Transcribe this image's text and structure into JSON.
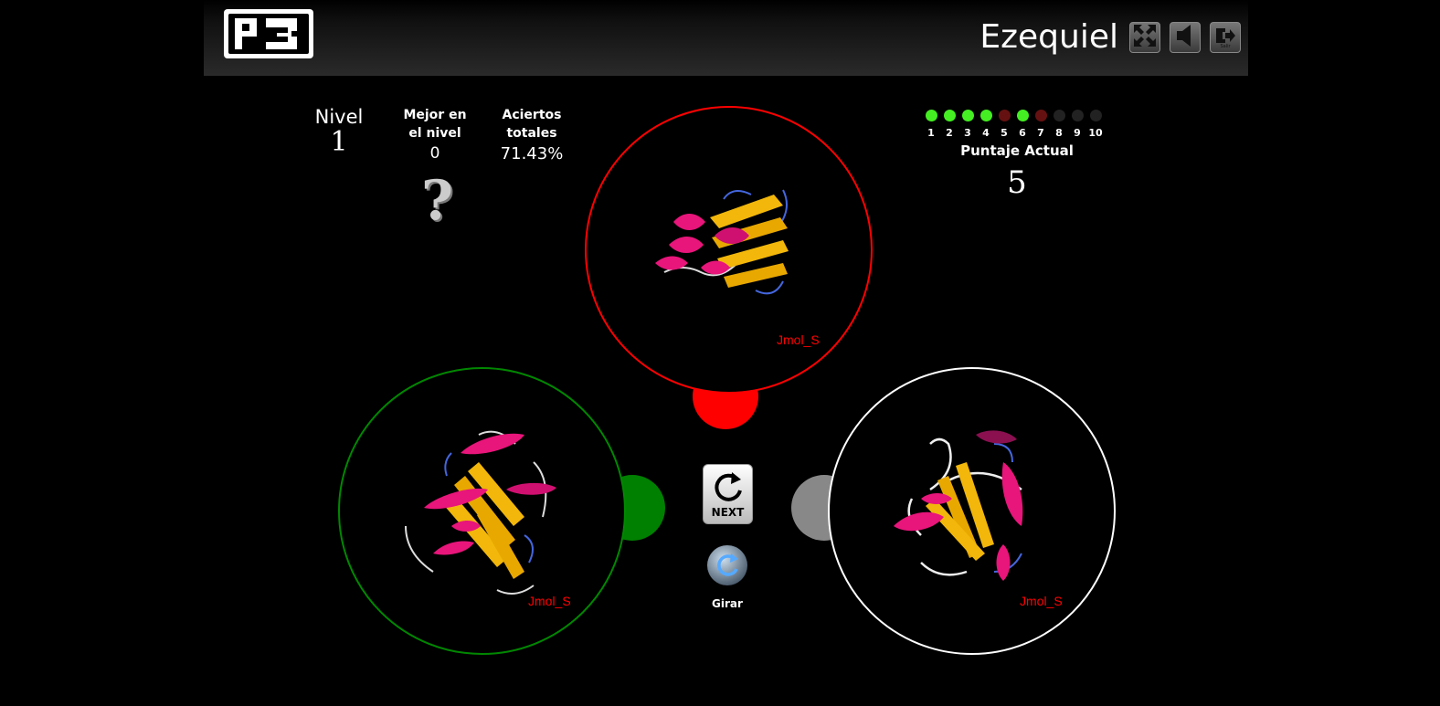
{
  "header": {
    "logo_text": "P3",
    "username": "Ezequiel",
    "exit_label": "Salir"
  },
  "stats": {
    "level_label": "Nivel",
    "level_value": "1",
    "best_label": "Mejor en el nivel",
    "best_value": "0",
    "total_label": "Aciertos totales",
    "total_value": "71.43%",
    "best_unknown_symbol": "?"
  },
  "progress": {
    "rounds": [
      {
        "num": "1",
        "status": "correct"
      },
      {
        "num": "2",
        "status": "correct"
      },
      {
        "num": "3",
        "status": "correct"
      },
      {
        "num": "4",
        "status": "correct"
      },
      {
        "num": "5",
        "status": "wrong"
      },
      {
        "num": "6",
        "status": "correct"
      },
      {
        "num": "7",
        "status": "wrong"
      },
      {
        "num": "8",
        "status": "pending"
      },
      {
        "num": "9",
        "status": "pending"
      },
      {
        "num": "10",
        "status": "pending"
      }
    ],
    "colors": {
      "correct": "#44ee22",
      "wrong": "#661111",
      "pending": "#222222"
    },
    "score_label": "Puntaje Actual",
    "score_value": "5"
  },
  "molecules": {
    "top": {
      "label": "Jmol_S",
      "ring_color": "#ff0000",
      "marker_color": "#ff0000"
    },
    "left": {
      "label": "Jmol_S",
      "ring_color": "#008800",
      "marker_color": "#008000"
    },
    "right": {
      "label": "Jmol_S",
      "ring_color": "#ffffff",
      "marker_color": "#888888"
    }
  },
  "controls": {
    "next_label": "NEXT",
    "rotate_label": "Girar"
  }
}
